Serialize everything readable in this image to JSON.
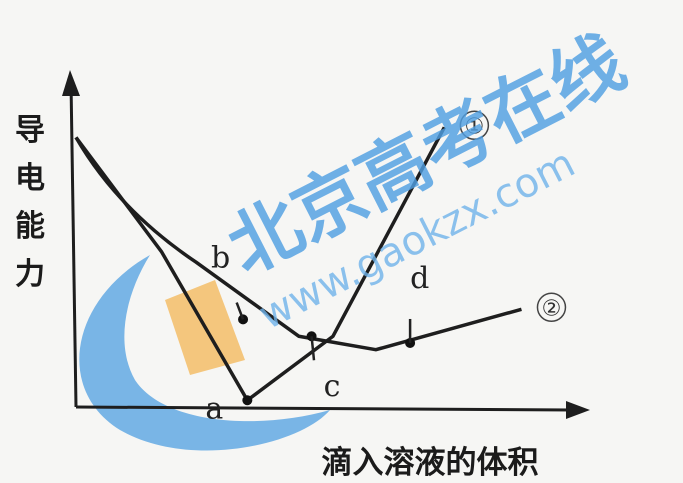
{
  "chart_data": {
    "type": "line",
    "xlabel": "滴入溶液的体积",
    "ylabel": "导电能力",
    "series": [
      {
        "name": "①",
        "x": [
          0,
          1.0,
          2.0,
          3.0,
          4.3
        ],
        "y": [
          8.0,
          4.6,
          0.2,
          2.1,
          8.3
        ]
      },
      {
        "name": "②",
        "x": [
          0,
          1.4,
          2.6,
          3.5,
          5.2
        ],
        "y": [
          8.0,
          4.3,
          2.1,
          1.7,
          2.9
        ]
      }
    ],
    "points": [
      {
        "label": "a",
        "x": 2.0,
        "y": 0.2
      },
      {
        "label": "b",
        "x": 1.95,
        "y": 2.6
      },
      {
        "label": "c",
        "x": 2.75,
        "y": 2.1
      },
      {
        "label": "d",
        "x": 3.9,
        "y": 1.9
      }
    ],
    "xlim": [
      0,
      6
    ],
    "ylim": [
      0,
      10
    ],
    "colors": {
      "curve": "#1e1e1e",
      "axis": "#1e1e1e"
    }
  },
  "watermark": {
    "brand": "北京高考在线",
    "site": "www.gaokzx.com",
    "colors": {
      "blue": "#4f9fe2",
      "orange": "#f3b24a"
    }
  }
}
